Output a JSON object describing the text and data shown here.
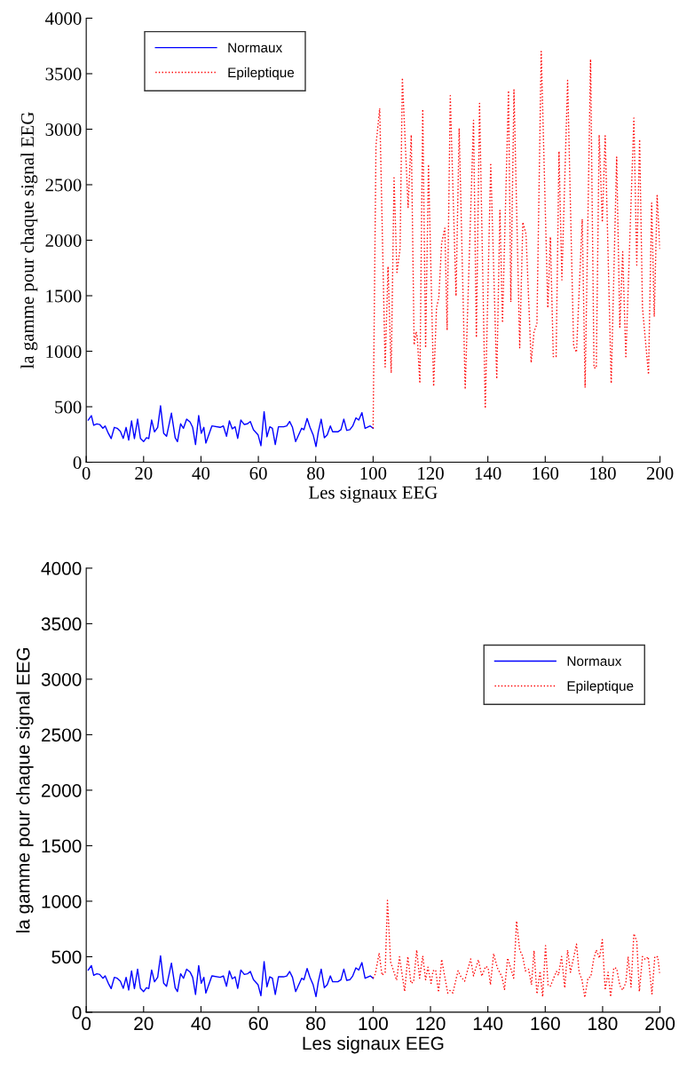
{
  "chart_data": [
    {
      "type": "line",
      "xlabel": "Les signaux EEG",
      "ylabel": "la gamme pour chaque signal EEG",
      "xlim": [
        0,
        200
      ],
      "ylim": [
        0,
        4000
      ],
      "xticks": [
        0,
        20,
        40,
        60,
        80,
        100,
        120,
        140,
        160,
        180,
        200
      ],
      "yticks": [
        0,
        500,
        1000,
        1500,
        2000,
        2500,
        3000,
        3500,
        4000
      ],
      "grid": false,
      "legend": "top left",
      "marker": "none",
      "series": [
        {
          "name": "Normaux",
          "color": "#0000ff",
          "line_style": "solid",
          "x": [
            0.7,
            1.8,
            2.6,
            3.7,
            4.7,
            5.8,
            6.6,
            7.7,
            8.7,
            9.8,
            10.8,
            11.9,
            12.9,
            13.9,
            14.8,
            15.8,
            16.8,
            17.9,
            18.9,
            20,
            21,
            21.8,
            22.8,
            23.8,
            24.9,
            25.9,
            27,
            28,
            29.7,
            31,
            31.8,
            32.9,
            33.9,
            35,
            36.2,
            37.1,
            38.1,
            39.2,
            40.1,
            41,
            41.7,
            43.8,
            46.7,
            47.8,
            48.9,
            49.9,
            50.9,
            51.9,
            52.8,
            53.9,
            55.1,
            56.2,
            57.2,
            58.3,
            59.9,
            60.9,
            62,
            63,
            64,
            64.9,
            65.9,
            67,
            68.8,
            69.9,
            70.9,
            71.9,
            73,
            75.1,
            75.9,
            77,
            78,
            79.1,
            80.1,
            80.9,
            81.9,
            83,
            84,
            85.1,
            85.9,
            87.7,
            88.8,
            89.8,
            90.8,
            91.9,
            92.9,
            94,
            95,
            96.1,
            97.2,
            99,
            100
          ],
          "values": [
            380,
            420,
            333,
            346,
            340,
            306,
            327,
            261,
            213,
            314,
            306,
            279,
            215,
            314,
            200,
            372,
            213,
            388,
            215,
            186,
            221,
            213,
            380,
            274,
            314,
            508,
            261,
            234,
            442,
            221,
            186,
            346,
            306,
            388,
            362,
            314,
            160,
            420,
            261,
            314,
            173,
            327,
            314,
            327,
            234,
            372,
            301,
            319,
            215,
            380,
            340,
            346,
            367,
            293,
            247,
            149,
            455,
            229,
            319,
            306,
            160,
            319,
            319,
            327,
            367,
            314,
            186,
            306,
            293,
            394,
            314,
            247,
            141,
            274,
            388,
            221,
            247,
            327,
            274,
            274,
            293,
            388,
            287,
            293,
            327,
            399,
            380,
            447,
            306,
            327,
            306
          ]
        },
        {
          "name": "Epileptique",
          "color": "#ff0000",
          "line_style": "dotted",
          "x": [
            100,
            101,
            102.3,
            104.2,
            105.2,
            106.3,
            107.3,
            108.3,
            109.4,
            110.2,
            112.2,
            113.3,
            114.3,
            115,
            115.4,
            116.3,
            117.3,
            118.3,
            119.3,
            121.1,
            122.1,
            122.9,
            123.9,
            125,
            125.8,
            126.9,
            128.9,
            130,
            132.1,
            135,
            136,
            137.1,
            139.1,
            141,
            143.1,
            144.2,
            145.1,
            147.2,
            148,
            149.1,
            151.1,
            152.2,
            153.3,
            155.1,
            156.1,
            157.1,
            158.6,
            160.9,
            161.8,
            162.8,
            163.8,
            164.8,
            165.8,
            167.8,
            169.9,
            170.9,
            172.9,
            173.9,
            175.8,
            177,
            177.8,
            178.8,
            179.9,
            180.9,
            183,
            184.9,
            186,
            187,
            188.1,
            190.9,
            191.9,
            192.9,
            193.9,
            196,
            197.1,
            198,
            199,
            200
          ],
          "values": [
            306,
            2855,
            3188,
            858,
            1763,
            804,
            2562,
            1710,
            1923,
            3462,
            2296,
            2948,
            1057,
            1177,
            1124,
            711,
            3180,
            1031,
            2682,
            684,
            1390,
            1483,
            1976,
            2109,
            1190,
            3302,
            1497,
            3009,
            658,
            3081,
            1124,
            3233,
            485,
            2695,
            751,
            2269,
            1257,
            3347,
            1443,
            3355,
            1031,
            2162,
            2056,
            897,
            1177,
            1244,
            3700,
            1390,
            2029,
            951,
            951,
            2801,
            1643,
            3440,
            1044,
            991,
            2189,
            671,
            3630,
            850,
            850,
            2948,
            2162,
            2940,
            711,
            2748,
            1217,
            1896,
            937,
            3100,
            1776,
            2908,
            1390,
            791,
            2335,
            1310,
            2402,
            1909
          ]
        }
      ]
    },
    {
      "type": "line",
      "xlabel": "Les signaux EEG",
      "ylabel": "la gamme pour chaque signal EEG",
      "xlim": [
        0,
        200
      ],
      "ylim": [
        0,
        4000
      ],
      "xticks": [
        0,
        20,
        40,
        60,
        80,
        100,
        120,
        140,
        160,
        180,
        200
      ],
      "yticks": [
        0,
        500,
        1000,
        1500,
        2000,
        2500,
        3000,
        3500,
        4000
      ],
      "grid": false,
      "legend": "right",
      "marker": "none",
      "series": [
        {
          "name": "Normaux",
          "color": "#0000ff",
          "line_style": "solid",
          "x": [
            0.7,
            1.8,
            2.6,
            3.7,
            4.7,
            5.8,
            6.6,
            7.7,
            8.7,
            9.8,
            10.8,
            11.9,
            12.9,
            13.9,
            14.8,
            15.8,
            16.8,
            17.9,
            18.9,
            20,
            21,
            21.8,
            22.8,
            23.8,
            24.9,
            25.9,
            27,
            28,
            29.7,
            31,
            31.8,
            32.9,
            33.9,
            35,
            36.2,
            37.1,
            38.1,
            39.2,
            40.1,
            41,
            41.7,
            43.8,
            46.7,
            47.8,
            48.9,
            49.9,
            50.9,
            51.9,
            52.8,
            53.9,
            55.1,
            56.2,
            57.2,
            58.3,
            59.9,
            60.9,
            62,
            63,
            64,
            64.9,
            65.9,
            67,
            68.8,
            69.9,
            70.9,
            71.9,
            73,
            75.1,
            75.9,
            77,
            78,
            79.1,
            80.1,
            80.9,
            81.9,
            83,
            84,
            85.1,
            85.9,
            87.7,
            88.8,
            89.8,
            90.8,
            91.9,
            92.9,
            94,
            95,
            96.1,
            97.2,
            99,
            100
          ],
          "values": [
            380,
            420,
            333,
            346,
            340,
            306,
            327,
            261,
            213,
            314,
            306,
            279,
            215,
            314,
            200,
            372,
            213,
            388,
            215,
            186,
            221,
            213,
            380,
            274,
            314,
            508,
            261,
            234,
            442,
            221,
            186,
            346,
            306,
            388,
            362,
            314,
            160,
            420,
            261,
            314,
            173,
            327,
            314,
            327,
            234,
            372,
            301,
            319,
            215,
            380,
            340,
            346,
            367,
            293,
            247,
            149,
            455,
            229,
            319,
            306,
            160,
            319,
            319,
            327,
            367,
            314,
            186,
            306,
            293,
            394,
            314,
            247,
            141,
            274,
            388,
            221,
            247,
            327,
            274,
            274,
            293,
            388,
            287,
            293,
            327,
            399,
            380,
            447,
            306,
            327,
            306
          ]
        },
        {
          "name": "Epileptique",
          "color": "#ff0000",
          "line_style": "dotted",
          "x": [
            100,
            100.8,
            102.1,
            103.1,
            104.2,
            105,
            106.1,
            108.2,
            109.2,
            111,
            112.1,
            113.2,
            114.1,
            115.2,
            116.2,
            117.3,
            118.3,
            119.1,
            120.2,
            120.9,
            121.8,
            122.8,
            123.9,
            126,
            126.8,
            127.8,
            129.6,
            130.6,
            131.9,
            134,
            135,
            136.7,
            137.9,
            139.2,
            140.1,
            140.9,
            142,
            143.3,
            144.9,
            145.8,
            146.9,
            149,
            150,
            151.1,
            152.1,
            153.1,
            154.2,
            155.2,
            156.1,
            157.1,
            158.2,
            159.1,
            160.1,
            161,
            161.8,
            163.9,
            164.6,
            165.7,
            166.8,
            167.8,
            168.8,
            170.9,
            171.8,
            172.8,
            173.8,
            174.9,
            175.9,
            176.9,
            177.8,
            178.9,
            179.9,
            180.9,
            181.9,
            182.8,
            183.9,
            184.9,
            186,
            187,
            188.1,
            188.9,
            189.9,
            190.9,
            191.9,
            192.8,
            193.9,
            194.9,
            195.9,
            197.2,
            198.2,
            199.2,
            200
          ],
          "values": [
            307,
            347,
            533,
            333,
            360,
            1008,
            453,
            288,
            499,
            187,
            501,
            261,
            272,
            560,
            307,
            507,
            293,
            405,
            261,
            373,
            381,
            181,
            475,
            173,
            195,
            173,
            373,
            320,
            280,
            480,
            328,
            472,
            325,
            413,
            400,
            248,
            528,
            400,
            320,
            205,
            488,
            307,
            821,
            560,
            507,
            373,
            387,
            248,
            555,
            165,
            368,
            139,
            600,
            240,
            235,
            368,
            333,
            501,
            219,
            560,
            360,
            613,
            360,
            293,
            133,
            307,
            320,
            480,
            560,
            488,
            653,
            200,
            360,
            139,
            400,
            395,
            240,
            200,
            267,
            501,
            227,
            707,
            640,
            187,
            501,
            475,
            499,
            165,
            501,
            499,
            339
          ]
        }
      ]
    }
  ]
}
